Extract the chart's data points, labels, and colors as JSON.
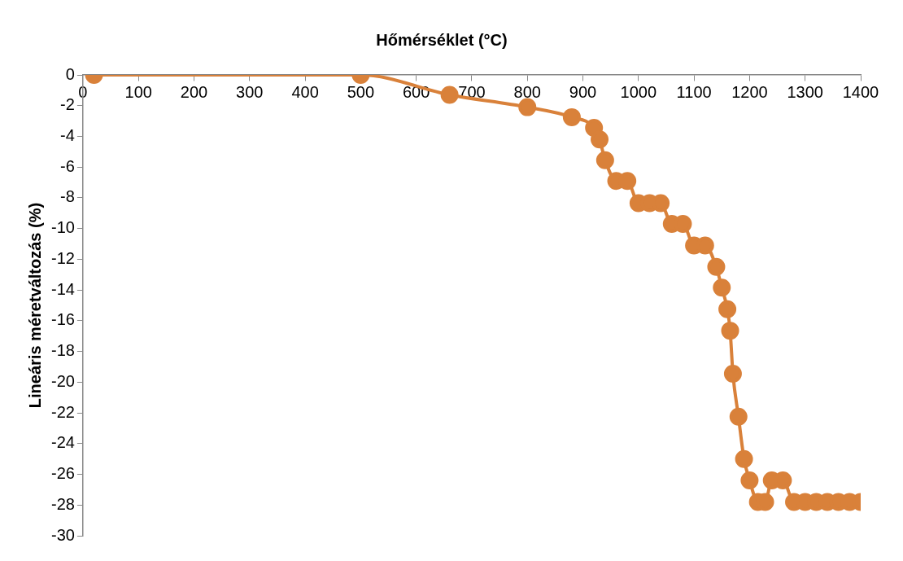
{
  "chart_data": {
    "type": "line",
    "xlabel": "Hőmérséklet (°C)",
    "ylabel": "Lineáris méretváltozás (%)",
    "xlim": [
      0,
      1400
    ],
    "xticks": [
      0,
      100,
      200,
      300,
      400,
      500,
      600,
      700,
      800,
      900,
      1000,
      1100,
      1200,
      1300,
      1400
    ],
    "ylim": [
      -30,
      0
    ],
    "yticks": [
      0,
      -2,
      -4,
      -6,
      -8,
      -10,
      -12,
      -14,
      -16,
      -18,
      -20,
      -22,
      -24,
      -26,
      -28,
      -30
    ],
    "grid": false,
    "legend": false,
    "marker": "circle",
    "line_style": "solid",
    "series": [
      {
        "color": "#d9813a",
        "x": [
          20,
          500,
          660,
          800,
          880,
          920,
          930,
          940,
          960,
          980,
          1000,
          1020,
          1040,
          1060,
          1080,
          1100,
          1120,
          1140,
          1150,
          1160,
          1165,
          1170,
          1180,
          1190,
          1200,
          1215,
          1228,
          1240,
          1260,
          1280,
          1300,
          1320,
          1340,
          1360,
          1380,
          1400
        ],
        "values": [
          0,
          0,
          -1.3,
          -2.1,
          -2.75,
          -3.45,
          -4.2,
          -5.55,
          -6.9,
          -6.9,
          -8.35,
          -8.35,
          -8.35,
          -9.7,
          -9.7,
          -11.1,
          -11.1,
          -12.5,
          -13.85,
          -15.25,
          -16.65,
          -19.45,
          -22.25,
          -25,
          -26.4,
          -27.8,
          -27.8,
          -26.4,
          -26.4,
          -27.8,
          -27.8,
          -27.8,
          -27.8,
          -27.8,
          -27.8,
          -27.8
        ]
      }
    ]
  }
}
